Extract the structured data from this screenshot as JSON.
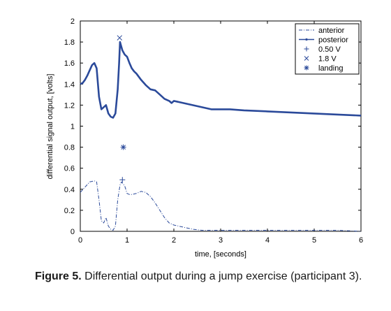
{
  "chart_data": {
    "type": "line",
    "title": "",
    "xlabel": "time, [seconds]",
    "ylabel": "differential signal output, [volts]",
    "xlim": [
      0,
      6
    ],
    "ylim": [
      0,
      2
    ],
    "xticks": [
      "0",
      "1",
      "2",
      "3",
      "4",
      "5",
      "6"
    ],
    "yticks": [
      "0",
      "0.2",
      "0.4",
      "0.6",
      "0.8",
      "1",
      "1.2",
      "1.4",
      "1.6",
      "1.8",
      "2"
    ],
    "grid": false,
    "legend_position": "top-right",
    "series": [
      {
        "name": "anterior",
        "style": "dash-dot",
        "color": "#2b4a9a",
        "x": [
          0,
          0.1,
          0.2,
          0.3,
          0.35,
          0.4,
          0.45,
          0.5,
          0.55,
          0.6,
          0.65,
          0.7,
          0.75,
          0.8,
          0.85,
          0.88,
          0.9,
          0.95,
          1.0,
          1.05,
          1.1,
          1.2,
          1.3,
          1.4,
          1.5,
          1.6,
          1.7,
          1.8,
          1.9,
          2.0,
          2.2,
          2.4,
          2.6,
          2.8,
          3.0,
          3.5,
          4.0,
          4.5,
          5.0,
          5.5,
          6.0
        ],
        "y": [
          0.37,
          0.42,
          0.47,
          0.48,
          0.47,
          0.3,
          0.1,
          0.08,
          0.13,
          0.05,
          0.02,
          0.01,
          0.05,
          0.3,
          0.44,
          0.47,
          0.46,
          0.43,
          0.36,
          0.35,
          0.35,
          0.36,
          0.38,
          0.37,
          0.33,
          0.27,
          0.2,
          0.13,
          0.08,
          0.06,
          0.04,
          0.02,
          0.01,
          0.01,
          0.01,
          0.01,
          0.01,
          0.01,
          0.01,
          0.01,
          0.0
        ]
      },
      {
        "name": "posterior",
        "style": "solid-dot",
        "color": "#2b4a9a",
        "x": [
          0,
          0.05,
          0.1,
          0.15,
          0.2,
          0.25,
          0.3,
          0.35,
          0.4,
          0.45,
          0.5,
          0.55,
          0.6,
          0.65,
          0.7,
          0.75,
          0.8,
          0.83,
          0.85,
          0.88,
          0.9,
          0.95,
          1.0,
          1.05,
          1.1,
          1.15,
          1.2,
          1.3,
          1.4,
          1.5,
          1.6,
          1.7,
          1.8,
          1.9,
          1.95,
          2.0,
          2.1,
          2.2,
          2.4,
          2.6,
          2.8,
          3.0,
          3.2,
          3.5,
          4.0,
          4.5,
          5.0,
          5.5,
          6.0
        ],
        "y": [
          1.4,
          1.41,
          1.44,
          1.48,
          1.53,
          1.58,
          1.6,
          1.55,
          1.28,
          1.16,
          1.18,
          1.2,
          1.12,
          1.09,
          1.08,
          1.12,
          1.35,
          1.6,
          1.8,
          1.75,
          1.72,
          1.68,
          1.66,
          1.6,
          1.55,
          1.52,
          1.5,
          1.44,
          1.39,
          1.35,
          1.34,
          1.3,
          1.26,
          1.24,
          1.22,
          1.24,
          1.23,
          1.22,
          1.2,
          1.18,
          1.16,
          1.16,
          1.16,
          1.15,
          1.14,
          1.13,
          1.12,
          1.11,
          1.1
        ]
      }
    ],
    "markers": [
      {
        "name": "0.50 V",
        "symbol": "plus",
        "x": 0.9,
        "y": 0.49
      },
      {
        "name": "1.8 V",
        "symbol": "cross",
        "x": 0.84,
        "y": 1.84
      },
      {
        "name": "landing",
        "symbol": "asterisk",
        "x": 0.92,
        "y": 0.8
      }
    ]
  },
  "caption": {
    "label": "Figure 5.",
    "text": "Differential output during a jump exercise (participant 3)."
  }
}
